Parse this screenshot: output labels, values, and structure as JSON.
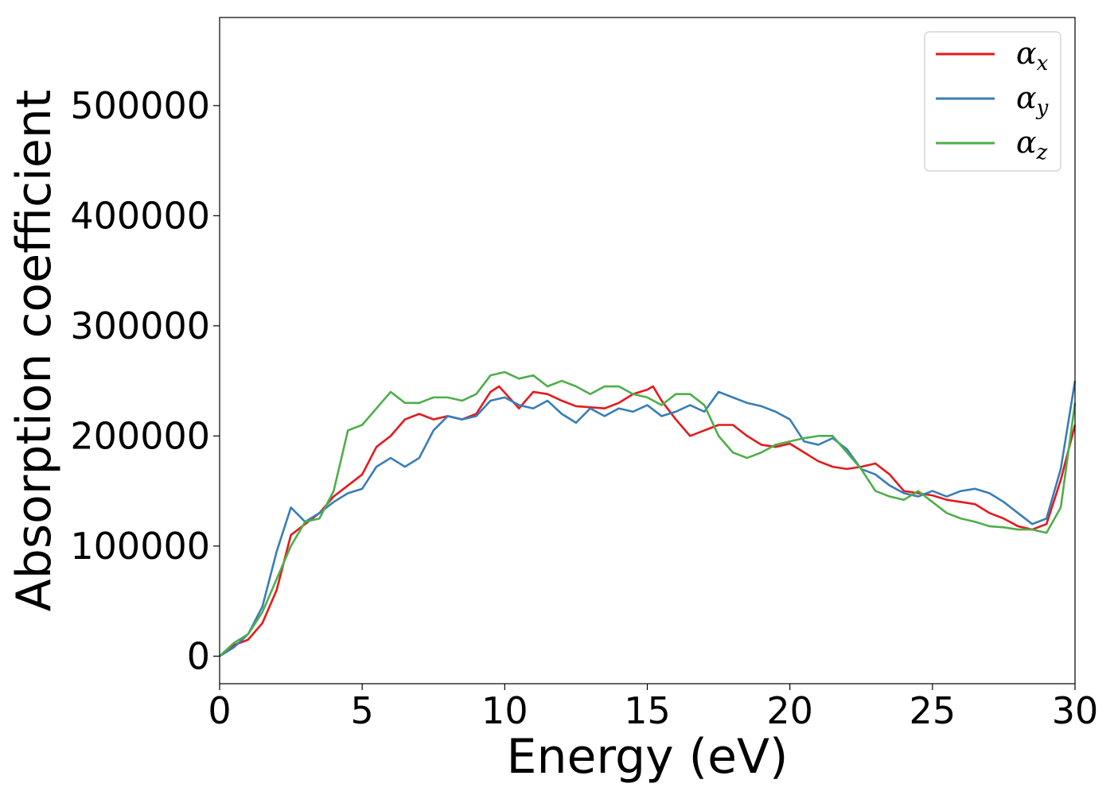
{
  "chart_data": {
    "type": "line",
    "title": "",
    "xlabel": "Energy (eV)",
    "ylabel": "Absorption coefficient",
    "xlim": [
      0,
      30
    ],
    "ylim": [
      -25000,
      580000
    ],
    "xticks": [
      0,
      5,
      10,
      15,
      20,
      25,
      30
    ],
    "yticks": [
      0,
      100000,
      200000,
      300000,
      400000,
      500000
    ],
    "grid": false,
    "legend_position": "top-right",
    "series": [
      {
        "name": "α",
        "subscript": "x",
        "color": "#e41a1c",
        "x": [
          0,
          0.5,
          1,
          1.5,
          2,
          2.5,
          3,
          3.5,
          4,
          4.5,
          5,
          5.5,
          6,
          6.5,
          7,
          7.5,
          8,
          8.5,
          9,
          9.5,
          9.8,
          10.5,
          11,
          11.5,
          12,
          12.5,
          13,
          13.5,
          14,
          14.5,
          15,
          15.2,
          15.5,
          16,
          16.5,
          17,
          17.5,
          18,
          18.5,
          19,
          19.5,
          20,
          20.5,
          21,
          21.5,
          22,
          22.5,
          23,
          23.5,
          24,
          24.5,
          25,
          25.5,
          26,
          26.5,
          27,
          27.5,
          28,
          28.5,
          29,
          29.5,
          30
        ],
        "y": [
          0,
          10000,
          15000,
          30000,
          60000,
          110000,
          120000,
          130000,
          145000,
          155000,
          165000,
          190000,
          200000,
          215000,
          220000,
          215000,
          218000,
          215000,
          220000,
          240000,
          245000,
          225000,
          240000,
          238000,
          232000,
          227000,
          226000,
          225000,
          230000,
          238000,
          242000,
          245000,
          232000,
          215000,
          200000,
          205000,
          210000,
          210000,
          200000,
          192000,
          190000,
          193000,
          185000,
          177000,
          172000,
          170000,
          172000,
          175000,
          165000,
          150000,
          148000,
          146000,
          142000,
          140000,
          138000,
          130000,
          125000,
          118000,
          115000,
          120000,
          160000,
          210000
        ]
      },
      {
        "name": "α",
        "subscript": "y",
        "color": "#377eb8",
        "x": [
          0,
          0.5,
          1,
          1.5,
          2,
          2.5,
          3,
          3.5,
          4,
          4.5,
          5,
          5.5,
          6,
          6.5,
          7,
          7.5,
          8,
          8.5,
          9,
          9.5,
          10,
          10.5,
          11,
          11.5,
          12,
          12.5,
          13,
          13.5,
          14,
          14.5,
          15,
          15.5,
          16,
          16.5,
          17,
          17.5,
          18,
          18.5,
          19,
          19.5,
          20,
          20.5,
          21,
          21.5,
          22,
          22.5,
          23,
          23.5,
          24,
          24.5,
          25,
          25.5,
          26,
          26.5,
          27,
          27.5,
          28,
          28.5,
          29,
          29.5,
          30
        ],
        "y": [
          0,
          8000,
          20000,
          45000,
          95000,
          135000,
          122000,
          130000,
          140000,
          148000,
          152000,
          172000,
          180000,
          172000,
          180000,
          205000,
          218000,
          215000,
          218000,
          232000,
          235000,
          228000,
          225000,
          232000,
          220000,
          212000,
          225000,
          218000,
          225000,
          222000,
          228000,
          218000,
          222000,
          228000,
          222000,
          240000,
          235000,
          230000,
          227000,
          222000,
          215000,
          195000,
          192000,
          198000,
          188000,
          170000,
          165000,
          155000,
          148000,
          145000,
          150000,
          145000,
          150000,
          152000,
          148000,
          140000,
          130000,
          120000,
          125000,
          170000,
          250000
        ]
      },
      {
        "name": "α",
        "subscript": "z",
        "color": "#4daf4a",
        "x": [
          0,
          0.5,
          1,
          1.5,
          2,
          2.5,
          3,
          3.5,
          4,
          4.5,
          5,
          5.5,
          6,
          6.5,
          7,
          7.5,
          8,
          8.5,
          9,
          9.5,
          10,
          10.5,
          11,
          11.5,
          12,
          12.5,
          13,
          13.5,
          14,
          14.5,
          15,
          15.5,
          16,
          16.5,
          17,
          17.5,
          18,
          18.5,
          19,
          19.5,
          20,
          20.5,
          21,
          21.5,
          22,
          22.5,
          23,
          23.5,
          24,
          24.5,
          25,
          25.5,
          26,
          26.5,
          27,
          27.5,
          28,
          28.5,
          29,
          29.5,
          30
        ],
        "y": [
          0,
          12000,
          20000,
          40000,
          70000,
          100000,
          122000,
          125000,
          150000,
          205000,
          210000,
          225000,
          240000,
          230000,
          230000,
          235000,
          235000,
          232000,
          238000,
          255000,
          258000,
          252000,
          255000,
          245000,
          250000,
          245000,
          238000,
          245000,
          245000,
          238000,
          235000,
          228000,
          238000,
          238000,
          228000,
          200000,
          185000,
          180000,
          185000,
          192000,
          195000,
          198000,
          200000,
          200000,
          185000,
          170000,
          150000,
          145000,
          142000,
          150000,
          140000,
          130000,
          125000,
          122000,
          118000,
          117000,
          115000,
          115000,
          112000,
          135000,
          230000
        ]
      }
    ]
  }
}
